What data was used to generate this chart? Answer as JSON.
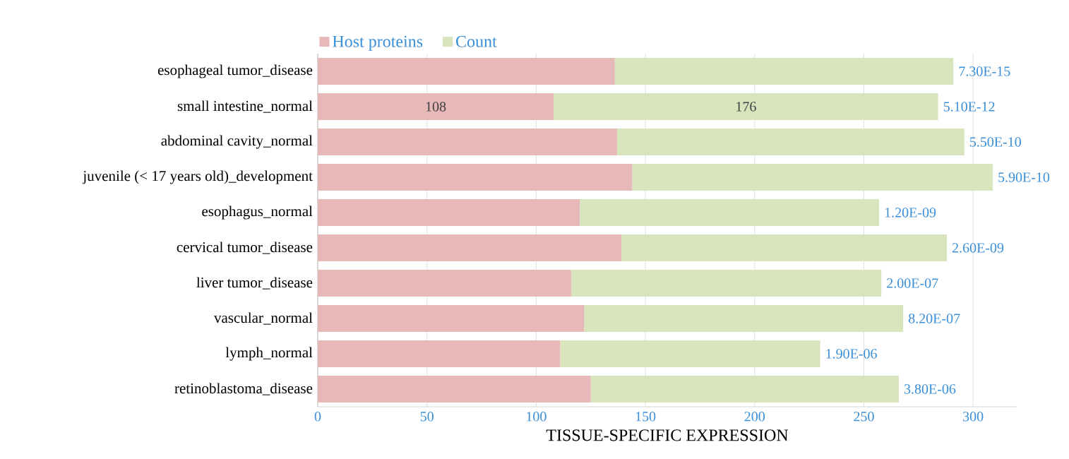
{
  "chart_data": {
    "type": "bar",
    "orientation": "horizontal",
    "stacked": true,
    "xlabel": "TISSUE-SPECIFIC  EXPRESSION",
    "categories": [
      "esophageal tumor_disease",
      "small intestine_normal",
      "abdominal cavity_normal",
      "juvenile (< 17 years old)_development",
      "esophagus_normal",
      "cervical tumor_disease",
      "liver tumor_disease",
      "vascular_normal",
      "lymph_normal",
      "retinoblastoma_disease"
    ],
    "series": [
      {
        "name": "Host proteins",
        "color": "#e6b8b7",
        "values": [
          136,
          108,
          137,
          144,
          120,
          139,
          116,
          122,
          111,
          125
        ],
        "value_labels": [
          null,
          "108",
          null,
          null,
          null,
          null,
          null,
          null,
          null,
          null
        ]
      },
      {
        "name": "Count",
        "color": "#d7e4bc",
        "values": [
          155,
          176,
          159,
          165,
          137,
          149,
          142,
          146,
          119,
          141
        ],
        "value_labels": [
          null,
          "176",
          null,
          null,
          null,
          null,
          null,
          null,
          null,
          null
        ]
      }
    ],
    "xlim": [
      0,
      320
    ],
    "xticks": [
      0,
      50,
      100,
      150,
      200,
      250,
      300
    ],
    "grid": "x",
    "legend": "top left",
    "annotations": [
      {
        "text": "7.30E-15",
        "x": 291,
        "y": "esophageal tumor_disease"
      },
      {
        "text": "5.10E-12",
        "x": 284,
        "y": "small intestine_normal"
      },
      {
        "text": "5.50E-10",
        "x": 296,
        "y": "abdominal cavity_normal"
      },
      {
        "text": "5.90E-10",
        "x": 309,
        "y": "juvenile (< 17 years old)_development"
      },
      {
        "text": "1.20E-09",
        "x": 257,
        "y": "esophagus_normal"
      },
      {
        "text": "2.60E-09",
        "x": 288,
        "y": "cervical tumor_disease"
      },
      {
        "text": "2.00E-07",
        "x": 258,
        "y": "liver tumor_disease"
      },
      {
        "text": "8.20E-07",
        "x": 268,
        "y": "vascular_normal"
      },
      {
        "text": "1.90E-06",
        "x": 230,
        "y": "lymph_normal"
      },
      {
        "text": "3.80E-06",
        "x": 266,
        "y": "retinoblastoma_disease"
      }
    ]
  }
}
